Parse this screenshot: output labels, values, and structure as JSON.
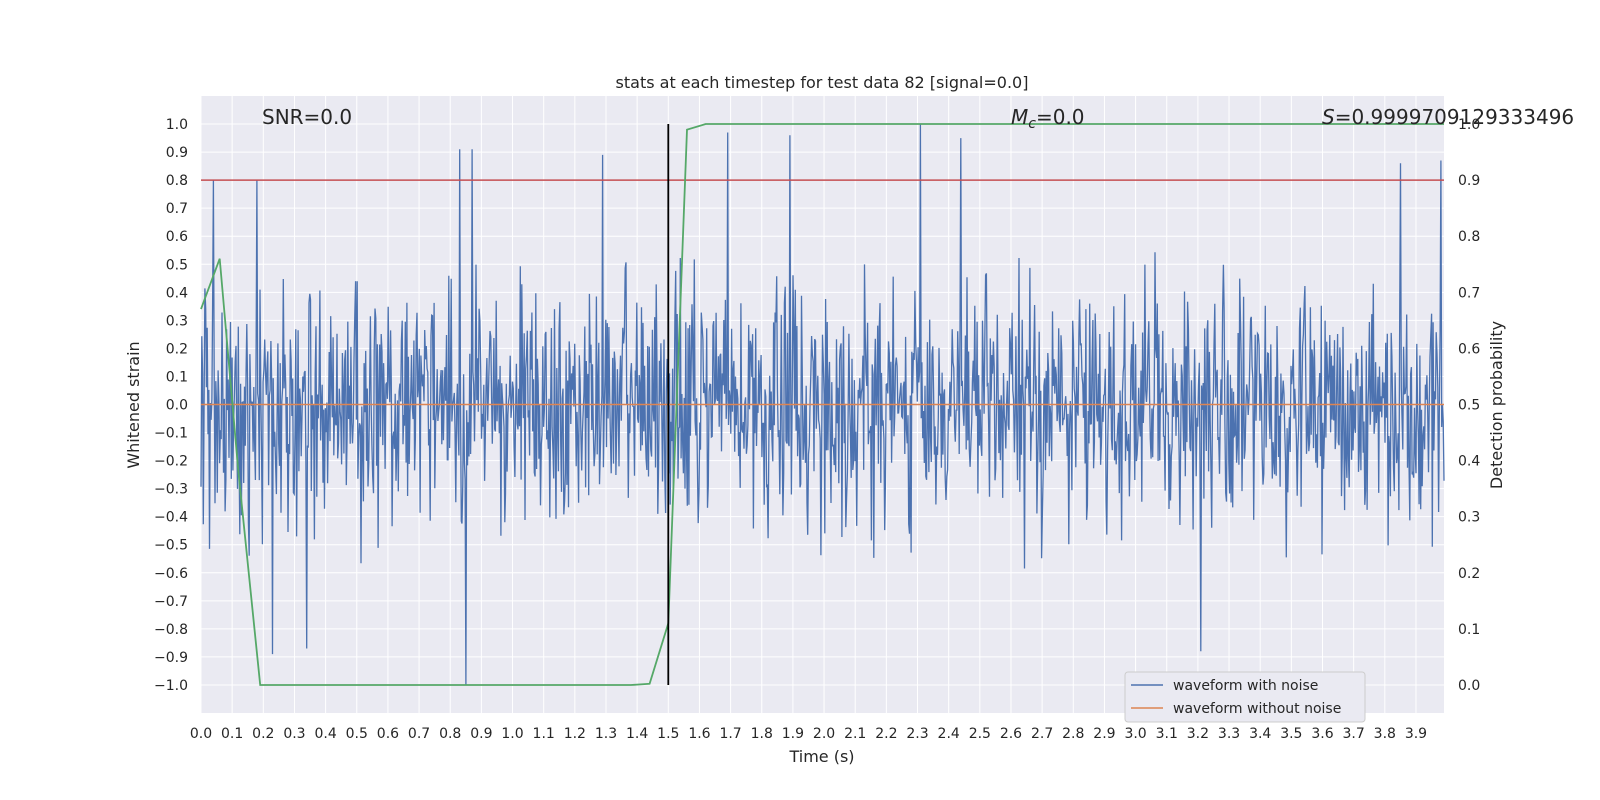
{
  "chart_data": {
    "type": "line",
    "title": "stats at each timestep for test data 82 [signal=0.0]",
    "xlabel": "Time (s)",
    "ylabel": "Whitened strain",
    "ylabel_right": "Detection probability",
    "xlim": [
      0.0,
      3.99
    ],
    "ylim": [
      -1.1,
      1.1
    ],
    "ylim_right": [
      -0.05,
      1.05
    ],
    "x_ticks": [
      "0.0",
      "0.1",
      "0.2",
      "0.3",
      "0.4",
      "0.5",
      "0.6",
      "0.7",
      "0.8",
      "0.9",
      "1.0",
      "1.1",
      "1.2",
      "1.3",
      "1.4",
      "1.5",
      "1.6",
      "1.7",
      "1.8",
      "1.9",
      "2.0",
      "2.1",
      "2.2",
      "2.3",
      "2.4",
      "2.5",
      "2.6",
      "2.7",
      "2.8",
      "2.9",
      "3.0",
      "3.1",
      "3.2",
      "3.3",
      "3.4",
      "3.5",
      "3.6",
      "3.7",
      "3.8",
      "3.9"
    ],
    "y_ticks": [
      "−1.0",
      "−0.9",
      "−0.8",
      "−0.7",
      "−0.6",
      "−0.5",
      "−0.4",
      "−0.3",
      "−0.2",
      "−0.1",
      "0.0",
      "0.1",
      "0.2",
      "0.3",
      "0.4",
      "0.5",
      "0.6",
      "0.7",
      "0.8",
      "0.9",
      "1.0"
    ],
    "y_ticks_right": [
      "0.0",
      "0.1",
      "0.2",
      "0.3",
      "0.4",
      "0.5",
      "0.6",
      "0.7",
      "0.8",
      "0.9",
      "1.0"
    ],
    "grid": true,
    "legend": {
      "placement": "lower-right",
      "entries": [
        {
          "label": "waveform with noise",
          "color": "#4c72b0"
        },
        {
          "label": "waveform without noise",
          "color": "#dd8452"
        }
      ]
    },
    "annotations": {
      "snr": "SNR=0.0",
      "mc_label": "M",
      "mc_sub": "c",
      "mc_value": "=0.0",
      "s_label": "S",
      "s_value": "=0.9999709129333496"
    },
    "threshold": {
      "y": 0.8,
      "color": "#c44e52"
    },
    "marker_line": {
      "x": 1.5,
      "y_range": [
        -1.0,
        1.0
      ],
      "color": "#000000"
    },
    "noise_series": {
      "name": "waveform with noise",
      "color": "#4c72b0",
      "amplitude_typical": 0.45,
      "peaks": [
        {
          "x": 0.04,
          "y": 0.8
        },
        {
          "x": 0.18,
          "y": 0.8
        },
        {
          "x": 0.23,
          "y": -0.89
        },
        {
          "x": 0.34,
          "y": -0.87
        },
        {
          "x": 0.83,
          "y": 0.91
        },
        {
          "x": 0.87,
          "y": 0.91
        },
        {
          "x": 0.85,
          "y": -1.0
        },
        {
          "x": 1.29,
          "y": 0.89
        },
        {
          "x": 1.69,
          "y": 0.97
        },
        {
          "x": 1.89,
          "y": 0.96
        },
        {
          "x": 2.31,
          "y": 1.0
        },
        {
          "x": 2.44,
          "y": 0.95
        },
        {
          "x": 3.21,
          "y": -0.88
        },
        {
          "x": 3.85,
          "y": 0.86
        },
        {
          "x": 3.98,
          "y": 0.87
        }
      ]
    },
    "clean_series": {
      "name": "waveform without noise",
      "color": "#dd8452",
      "value": 0.0
    },
    "probability_series": {
      "name": "Detection probability",
      "color": "#55a868",
      "x": [
        0.0,
        0.06,
        0.12,
        0.19,
        0.25,
        0.5,
        1.0,
        1.38,
        1.44,
        1.5,
        1.56,
        1.62,
        2.0,
        3.99
      ],
      "y": [
        0.67,
        0.76,
        0.38,
        0.0,
        0.0,
        0.0,
        0.0,
        0.0,
        0.002,
        0.11,
        0.99,
        1.0,
        1.0,
        1.0
      ]
    }
  }
}
